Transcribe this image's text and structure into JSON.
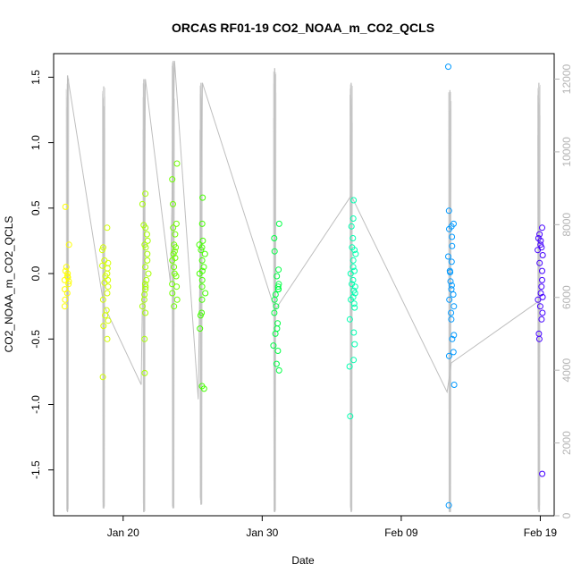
{
  "chart_data": {
    "type": "scatter",
    "title": "ORCAS RF01-19 CO2_NOAA_m_CO2_QCLS",
    "xlabel": "Date",
    "ylabel": "CO2_NOAA_m_CO2_QCLS",
    "y2label": "",
    "x_range": [
      "2016-01-15",
      "2016-02-20"
    ],
    "ylim": [
      -1.85,
      1.68
    ],
    "y2lim": [
      0,
      12700
    ],
    "x_ticks": [
      {
        "date": "2016-01-20",
        "label": "Jan 20"
      },
      {
        "date": "2016-01-30",
        "label": "Jan 30"
      },
      {
        "date": "2016-02-09",
        "label": "Feb 09"
      },
      {
        "date": "2016-02-19",
        "label": "Feb 19"
      }
    ],
    "y_ticks": [
      -1.5,
      -1.0,
      -0.5,
      0.0,
      0.5,
      1.0,
      1.5
    ],
    "y2_ticks": [
      0,
      2000,
      4000,
      6000,
      8000,
      10000,
      12000
    ],
    "grid": false,
    "altitude_series": {
      "color": "#bebebe",
      "flights": [
        {
          "center": "2016-01-16",
          "ymax": 12100,
          "ymin": 100
        },
        {
          "center": "2016-01-18.6",
          "ymax": 11800,
          "ymin": 200
        },
        {
          "center": "2016-01-21.5",
          "ymax": 12000,
          "ymin": 100
        },
        {
          "center": "2016-01-23.6",
          "ymax": 12500,
          "ymin": 200
        },
        {
          "center": "2016-01-25.6",
          "ymax": 11900,
          "ymin": 300
        },
        {
          "center": "2016-01-30.9",
          "ymax": 12300,
          "ymin": 100
        },
        {
          "center": "2016-02-05.4",
          "ymax": 11900,
          "ymin": 100
        },
        {
          "center": "2016-02-12.5",
          "ymax": 11700,
          "ymin": 100
        },
        {
          "center": "2016-02-18.9",
          "ymax": 11900,
          "ymin": 100
        }
      ],
      "track": [
        [
          "2016-01-16",
          12100
        ],
        [
          "2016-01-18.6",
          5800
        ],
        [
          "2016-01-21.3",
          3600
        ],
        [
          "2016-01-21.6",
          12000
        ],
        [
          "2016-01-23.4",
          6400
        ],
        [
          "2016-01-23.7",
          12500
        ],
        [
          "2016-01-25.4",
          3200
        ],
        [
          "2016-01-25.7",
          11900
        ],
        [
          "2016-01-30.8",
          5800
        ],
        [
          "2016-01-31.0",
          5700
        ],
        [
          "2016-02-05.4",
          8800
        ],
        [
          "2016-02-12.3",
          3400
        ],
        [
          "2016-02-12.6",
          4200
        ],
        [
          "2016-02-18.9",
          5900
        ]
      ]
    },
    "series": [
      {
        "date": "2016-01-16",
        "color": "#ffff00",
        "values": [
          0.51,
          0.22,
          0.05,
          0.0,
          -0.02,
          -0.05,
          -0.08,
          -0.12,
          -0.15,
          -0.2,
          -0.25,
          0.02,
          -0.03,
          -0.06
        ]
      },
      {
        "date": "2016-01-18.7",
        "color": "#d4ff00",
        "values": [
          0.35,
          0.2,
          0.18,
          0.1,
          0.06,
          0.04,
          0.0,
          -0.02,
          -0.05,
          -0.1,
          -0.15,
          -0.2,
          -0.28,
          -0.32,
          -0.36,
          -0.4,
          -0.5,
          -0.79,
          0.08,
          -0.07
        ]
      },
      {
        "date": "2016-01-21.6",
        "color": "#a6ff00",
        "values": [
          0.61,
          0.53,
          0.37,
          0.35,
          0.3,
          0.25,
          0.22,
          0.2,
          0.1,
          0.05,
          0.0,
          -0.05,
          -0.08,
          -0.12,
          -0.16,
          -0.2,
          -0.25,
          -0.3,
          -0.5,
          -0.76,
          0.15,
          -0.1
        ]
      },
      {
        "date": "2016-01-23.7",
        "color": "#70ff00",
        "values": [
          0.84,
          0.72,
          0.53,
          0.38,
          0.35,
          0.3,
          0.22,
          0.2,
          0.17,
          0.15,
          0.1,
          0.05,
          0.0,
          -0.02,
          -0.08,
          -0.1,
          -0.15,
          -0.2,
          -0.25,
          0.12
        ]
      },
      {
        "date": "2016-01-25.7",
        "color": "#44ff00",
        "values": [
          0.58,
          0.38,
          0.25,
          0.22,
          0.2,
          0.15,
          0.1,
          0.05,
          0.02,
          0.0,
          -0.05,
          -0.1,
          -0.15,
          -0.2,
          -0.3,
          -0.32,
          -0.42,
          -0.86,
          -0.88,
          0.18
        ]
      },
      {
        "date": "2016-01-31.0",
        "color": "#00ff44",
        "values": [
          0.38,
          0.27,
          0.17,
          0.03,
          -0.02,
          -0.08,
          -0.1,
          -0.12,
          -0.16,
          -0.2,
          -0.25,
          -0.3,
          -0.38,
          -0.42,
          -0.46,
          -0.59,
          -0.69,
          -0.74,
          -0.55,
          -0.12
        ]
      },
      {
        "date": "2016-02-05.5",
        "color": "#00ffb0",
        "values": [
          0.56,
          0.42,
          0.36,
          0.2,
          0.18,
          0.15,
          0.1,
          0.05,
          0.02,
          0.0,
          -0.05,
          -0.08,
          -0.1,
          -0.13,
          -0.15,
          -0.2,
          -0.23,
          -0.26,
          -0.35,
          -0.45,
          -0.54,
          -0.66,
          -0.71,
          -1.09,
          0.27,
          -0.18
        ]
      },
      {
        "date": "2016-02-12.6",
        "color": "#0099ff",
        "values": [
          1.58,
          0.48,
          0.38,
          0.36,
          0.34,
          0.28,
          0.21,
          0.13,
          0.09,
          0.02,
          0.01,
          -0.06,
          -0.09,
          -0.12,
          -0.16,
          -0.2,
          -0.25,
          -0.3,
          -0.35,
          -0.47,
          -0.5,
          -0.6,
          -0.63,
          -0.85,
          -1.77
        ]
      },
      {
        "date": "2016-02-19.0",
        "color": "#4400ff",
        "values": [
          0.35,
          0.3,
          0.27,
          0.25,
          0.22,
          0.2,
          0.18,
          0.14,
          0.08,
          0.02,
          -0.05,
          -0.1,
          -0.15,
          -0.18,
          -0.2,
          -0.25,
          -0.3,
          -0.35,
          -0.46,
          -0.5,
          -1.53
        ]
      }
    ]
  }
}
